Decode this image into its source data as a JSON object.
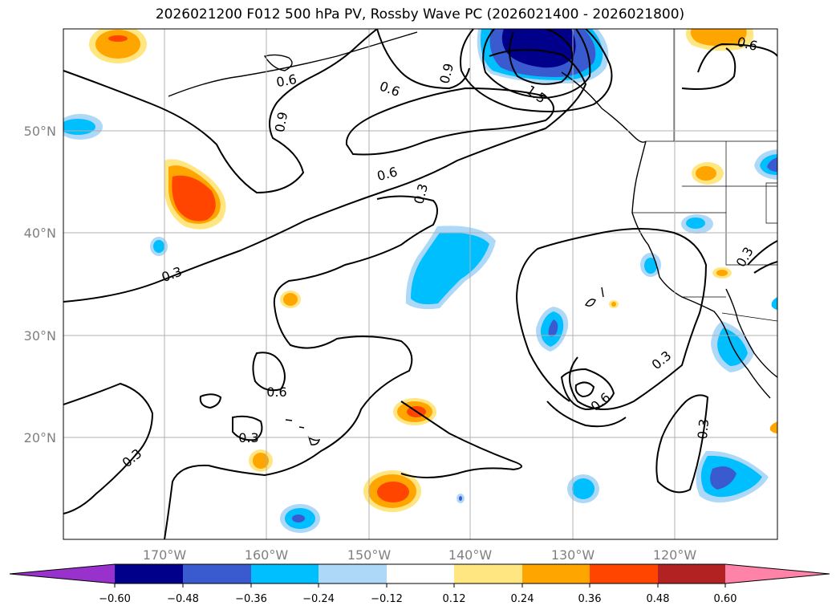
{
  "title": "2026021200 F012 500 hPa PV, Rossby Wave PC (2026021400 - 2026021800)",
  "map": {
    "lon_labels": [
      "170°W",
      "160°W",
      "150°W",
      "140°W",
      "130°W",
      "120°W"
    ],
    "lat_labels": [
      "50°N",
      "40°N",
      "30°N",
      "20°N"
    ],
    "contour_labels": [
      "0.6",
      "0.9",
      "0.6",
      "0.9",
      "1.5",
      "0.6",
      "0.3",
      "0.3",
      "0.3",
      "0.6",
      "0.3",
      "0.3",
      "0.6",
      "0.3",
      "0.3",
      "0.6"
    ]
  },
  "colorbar": {
    "ticks": [
      "−0.60",
      "−0.48",
      "−0.36",
      "−0.24",
      "−0.12",
      "0.12",
      "0.24",
      "0.36",
      "0.48",
      "0.60"
    ],
    "colors": {
      "under": "#9932cc",
      "n060": "#00008b",
      "n048": "#3a5bd0",
      "n036": "#00bfff",
      "n024": "#add8f8",
      "zero": "#ffffff",
      "p012": "#ffe680",
      "p024": "#ffa500",
      "p036": "#ff4500",
      "p048": "#b22222",
      "over": "#ff82a9"
    }
  }
}
